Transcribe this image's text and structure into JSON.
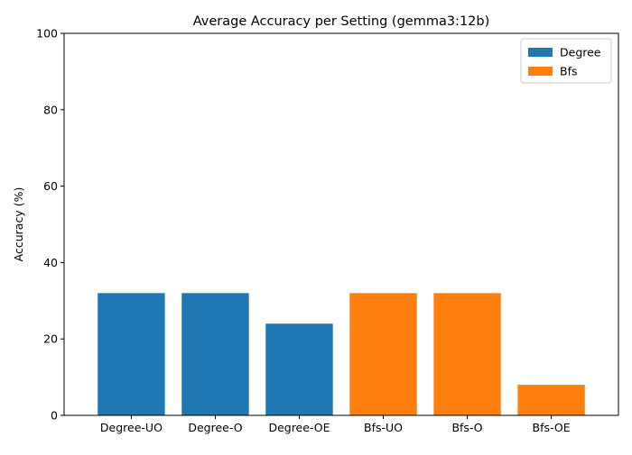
{
  "chart_data": {
    "type": "bar",
    "title": "Average Accuracy per Setting (gemma3:12b)",
    "xlabel": "",
    "ylabel": "Accuracy (%)",
    "ylim": [
      0,
      100
    ],
    "yticks": [
      0,
      20,
      40,
      60,
      80,
      100
    ],
    "categories": [
      "Degree-UO",
      "Degree-O",
      "Degree-OE",
      "Bfs-UO",
      "Bfs-O",
      "Bfs-OE"
    ],
    "values": [
      32,
      32,
      24,
      32,
      32,
      8
    ],
    "series": [
      {
        "name": "Degree",
        "color": "#1f77b4",
        "categories": [
          "Degree-UO",
          "Degree-O",
          "Degree-OE"
        ]
      },
      {
        "name": "Bfs",
        "color": "#ff7f0e",
        "categories": [
          "Bfs-UO",
          "Bfs-O",
          "Bfs-OE"
        ]
      }
    ],
    "legend": {
      "placement": "top-right"
    },
    "grid": false
  }
}
